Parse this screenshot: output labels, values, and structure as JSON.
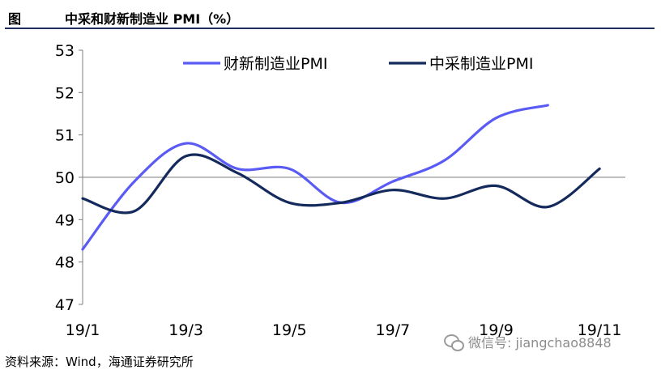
{
  "header": {
    "figure_label": "图",
    "title": "中采和财新制造业 PMI（%）"
  },
  "source_text": "资料来源：Wind，海通证券研究所",
  "watermark": {
    "text": "微信号: jiangchao8848",
    "icon": "wechat-icon"
  },
  "chart_data": {
    "type": "line",
    "title": "中采和财新制造业 PMI（%）",
    "xlabel": "",
    "ylabel": "",
    "ylim": [
      47,
      53
    ],
    "yticks": [
      47,
      48,
      49,
      50,
      51,
      52,
      53
    ],
    "x": [
      "19/1",
      "19/2",
      "19/3",
      "19/4",
      "19/5",
      "19/6",
      "19/7",
      "19/8",
      "19/9",
      "19/10",
      "19/11"
    ],
    "xtick_labels": [
      "19/1",
      "19/3",
      "19/5",
      "19/7",
      "19/9",
      "19/11"
    ],
    "reference_line": 50,
    "legend_position": "top",
    "grid": false,
    "series": [
      {
        "name": "财新制造业PMI",
        "color": "#5a5af5",
        "values": [
          48.3,
          49.9,
          50.8,
          50.2,
          50.2,
          49.4,
          49.9,
          50.4,
          51.4,
          51.7,
          null
        ]
      },
      {
        "name": "中采制造业PMI",
        "color": "#142a5c",
        "values": [
          49.5,
          49.2,
          50.5,
          50.1,
          49.4,
          49.4,
          49.7,
          49.5,
          49.8,
          49.3,
          50.2
        ]
      }
    ]
  }
}
